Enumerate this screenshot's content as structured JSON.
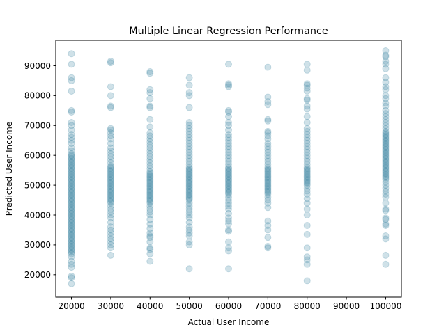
{
  "chart_data": {
    "type": "scatter",
    "title": "Multiple Linear Regression Performance",
    "xlabel": "Actual User Income",
    "ylabel": "Predicted User Income",
    "xlim": [
      16000,
      104000
    ],
    "ylim": [
      12500,
      98500
    ],
    "xticks": [
      20000,
      30000,
      40000,
      50000,
      60000,
      70000,
      80000,
      90000,
      100000
    ],
    "yticks": [
      20000,
      30000,
      40000,
      50000,
      60000,
      70000,
      80000,
      90000
    ],
    "grid": false,
    "legend": "none",
    "marker_color": "#3f88a4",
    "marker_alpha": 0.25,
    "points": {
      "20000": [
        94000,
        90500,
        86000,
        85000,
        81500,
        75000,
        74500,
        71000,
        70000,
        68500,
        67000,
        66000,
        65000,
        64000,
        62500,
        61500,
        60500,
        60000,
        59500,
        59000,
        58500,
        58000,
        57500,
        57000,
        56500,
        56000,
        55500,
        55000,
        54500,
        54000,
        53500,
        53000,
        52500,
        52000,
        51500,
        51000,
        50500,
        50000,
        49500,
        49000,
        48500,
        48000,
        47500,
        47000,
        46500,
        46000,
        45500,
        45000,
        44500,
        44000,
        43500,
        43000,
        42500,
        42000,
        41500,
        41000,
        40500,
        40000,
        39500,
        39000,
        38500,
        38000,
        37500,
        37000,
        36500,
        36000,
        35500,
        35000,
        34500,
        34000,
        33500,
        33000,
        32500,
        32000,
        31500,
        31000,
        30500,
        30000,
        29500,
        29000,
        28500,
        28000,
        27500,
        27000,
        26000,
        24500,
        23500,
        22500,
        19500,
        19000,
        17000
      ],
      "30000": [
        91500,
        91000,
        83000,
        80000,
        76500,
        76000,
        69000,
        68500,
        67500,
        66500,
        65500,
        64000,
        62500,
        61500,
        60500,
        59500,
        58500,
        57500,
        56500,
        56000,
        55500,
        55000,
        54500,
        54000,
        53500,
        53000,
        52500,
        52000,
        51500,
        51000,
        50500,
        50000,
        49500,
        49000,
        48500,
        48000,
        47500,
        47000,
        46500,
        46000,
        45500,
        45000,
        44500,
        44000,
        43000,
        42000,
        41000,
        40000,
        39000,
        37500,
        36000,
        35000,
        34000,
        33000,
        32000,
        31000,
        30000,
        29000,
        26500
      ],
      "40000": [
        88000,
        87500,
        82000,
        81000,
        79000,
        76500,
        76000,
        72000,
        69500,
        67500,
        66500,
        65500,
        64500,
        63500,
        62500,
        61500,
        60500,
        59500,
        58500,
        57500,
        56500,
        55500,
        54500,
        54000,
        53500,
        53000,
        52500,
        52000,
        51500,
        51000,
        50500,
        50000,
        49500,
        49000,
        48500,
        48000,
        47500,
        47000,
        46500,
        46000,
        45500,
        45000,
        44500,
        44000,
        43000,
        42000,
        41000,
        40000,
        38500,
        37000,
        35500,
        34000,
        33000,
        32500,
        31000,
        29000,
        28500,
        27000,
        24500
      ],
      "50000": [
        86000,
        83500,
        81000,
        80000,
        76000,
        71000,
        70000,
        69000,
        68000,
        67000,
        66000,
        65000,
        64000,
        63000,
        62000,
        61000,
        60000,
        59000,
        58000,
        57000,
        56000,
        55500,
        55000,
        54500,
        54000,
        53500,
        53000,
        52500,
        52000,
        51500,
        51000,
        50500,
        50000,
        49500,
        49000,
        48500,
        48000,
        47500,
        47000,
        46500,
        46000,
        45500,
        45000,
        44000,
        43000,
        42000,
        41000,
        40000,
        39000,
        37500,
        36000,
        35000,
        34000,
        33000,
        31000,
        30000,
        22000
      ],
      "60000": [
        90500,
        84000,
        83500,
        83000,
        75000,
        74500,
        73000,
        71000,
        70000,
        68500,
        67000,
        66000,
        65000,
        64000,
        63000,
        62000,
        61000,
        60000,
        59000,
        58000,
        57000,
        56000,
        55500,
        55000,
        54500,
        54000,
        53500,
        53000,
        52500,
        52000,
        51500,
        51000,
        50500,
        50000,
        49500,
        49000,
        48500,
        48000,
        47500,
        47000,
        46000,
        45000,
        44000,
        43000,
        42000,
        40500,
        39000,
        38000,
        37000,
        35000,
        34500,
        31000,
        29000,
        28000,
        22000
      ],
      "70000": [
        89500,
        79500,
        78000,
        77000,
        72000,
        71500,
        68000,
        67500,
        66500,
        65500,
        64000,
        63000,
        62000,
        61000,
        60000,
        59000,
        58000,
        57000,
        56000,
        55500,
        55000,
        54500,
        54000,
        53500,
        53000,
        52500,
        52000,
        51500,
        51000,
        50500,
        50000,
        49500,
        49000,
        48500,
        48000,
        47500,
        47000,
        46000,
        45000,
        44000,
        42500,
        38000,
        36500,
        35000,
        32500,
        29500,
        29000
      ],
      "80000": [
        90500,
        88500,
        84000,
        83500,
        82500,
        81500,
        79000,
        78500,
        76500,
        75500,
        73000,
        71000,
        69000,
        68000,
        67000,
        66000,
        65000,
        64000,
        63000,
        62000,
        61000,
        60000,
        59000,
        58000,
        57000,
        56000,
        55500,
        55000,
        54500,
        54000,
        53500,
        53000,
        52500,
        52000,
        51500,
        51000,
        50500,
        50000,
        49000,
        48000,
        47000,
        45500,
        44000,
        42000,
        40000,
        36500,
        33500,
        29000,
        26000,
        25000,
        23500,
        18000
      ],
      "100000": [
        95000,
        93500,
        93000,
        91500,
        90500,
        89000,
        86000,
        84500,
        83000,
        82000,
        80000,
        79000,
        77500,
        76500,
        75000,
        74000,
        73000,
        72000,
        71000,
        70000,
        69000,
        68000,
        67500,
        67000,
        66500,
        66000,
        65500,
        65000,
        64500,
        64000,
        63500,
        63000,
        62500,
        62000,
        61500,
        61000,
        60500,
        60000,
        59500,
        59000,
        58500,
        58000,
        57500,
        57000,
        56500,
        56000,
        55500,
        55000,
        54500,
        54000,
        53500,
        53000,
        52500,
        52000,
        51000,
        50000,
        49000,
        48000,
        47000,
        46000,
        44000,
        42000,
        41500,
        39000,
        38500,
        37000,
        36500,
        33000,
        32000,
        26500,
        23500
      ]
    }
  }
}
